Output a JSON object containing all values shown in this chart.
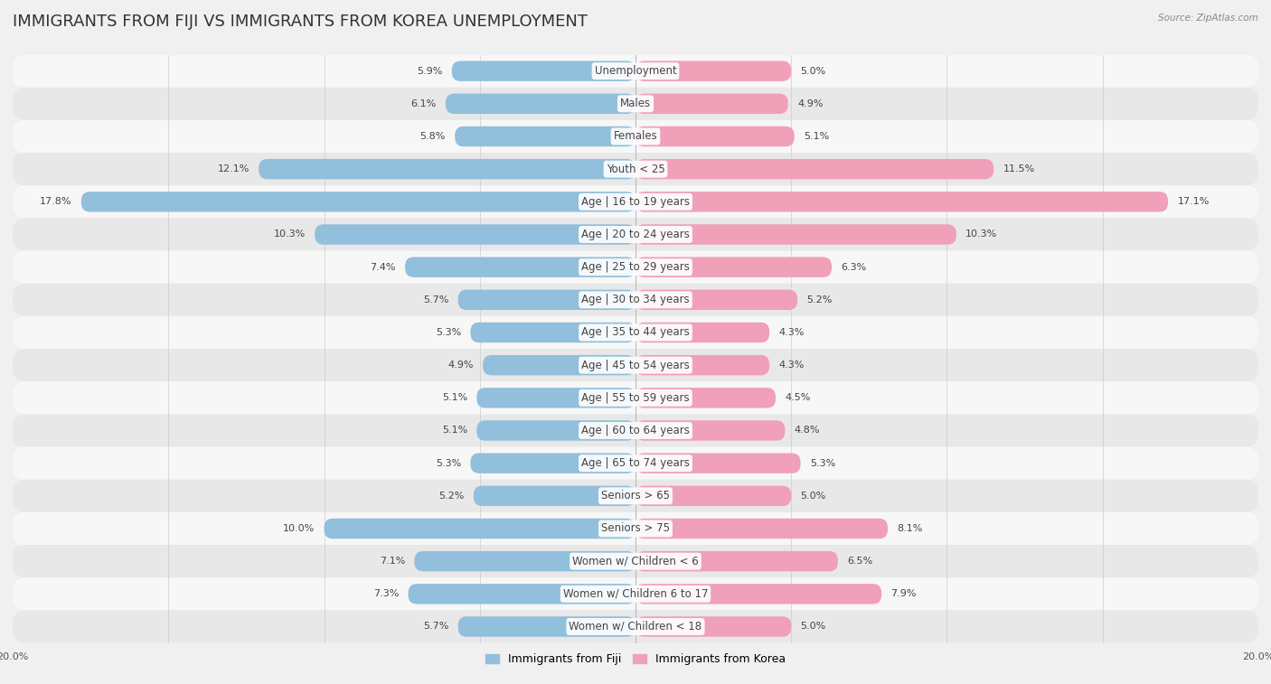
{
  "title": "IMMIGRANTS FROM FIJI VS IMMIGRANTS FROM KOREA UNEMPLOYMENT",
  "source": "Source: ZipAtlas.com",
  "categories": [
    "Unemployment",
    "Males",
    "Females",
    "Youth < 25",
    "Age | 16 to 19 years",
    "Age | 20 to 24 years",
    "Age | 25 to 29 years",
    "Age | 30 to 34 years",
    "Age | 35 to 44 years",
    "Age | 45 to 54 years",
    "Age | 55 to 59 years",
    "Age | 60 to 64 years",
    "Age | 65 to 74 years",
    "Seniors > 65",
    "Seniors > 75",
    "Women w/ Children < 6",
    "Women w/ Children 6 to 17",
    "Women w/ Children < 18"
  ],
  "fiji_values": [
    5.9,
    6.1,
    5.8,
    12.1,
    17.8,
    10.3,
    7.4,
    5.7,
    5.3,
    4.9,
    5.1,
    5.1,
    5.3,
    5.2,
    10.0,
    7.1,
    7.3,
    5.7
  ],
  "korea_values": [
    5.0,
    4.9,
    5.1,
    11.5,
    17.1,
    10.3,
    6.3,
    5.2,
    4.3,
    4.3,
    4.5,
    4.8,
    5.3,
    5.0,
    8.1,
    6.5,
    7.9,
    5.0
  ],
  "fiji_color": "#92bfdb",
  "korea_color": "#f0a0b8",
  "fiji_label": "Immigrants from Fiji",
  "korea_label": "Immigrants from Korea",
  "axis_max": 20.0,
  "background_color": "#f0f0f0",
  "row_color_light": "#f7f7f7",
  "row_color_dark": "#e8e8e8",
  "title_fontsize": 13,
  "label_fontsize": 8.5,
  "value_fontsize": 8.0
}
